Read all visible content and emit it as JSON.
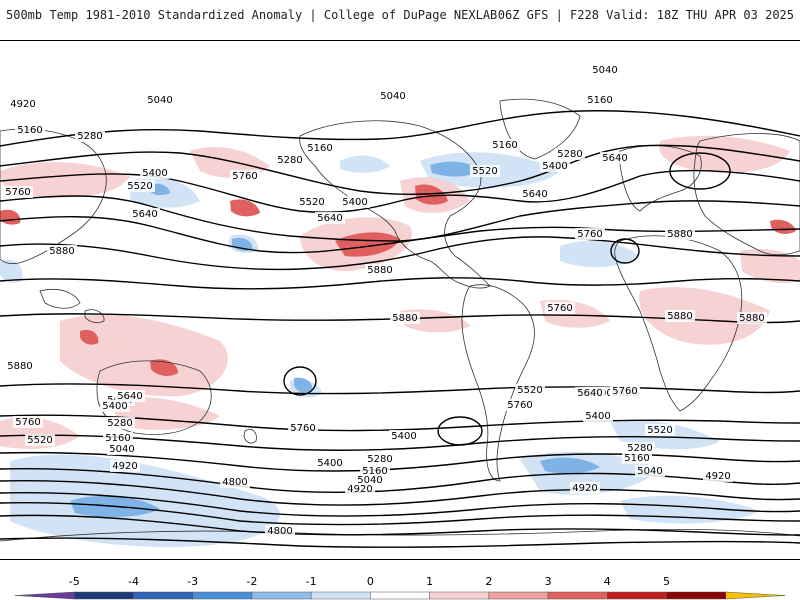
{
  "header": {
    "title": "500mb Temp 1981-2010 Standardized Anomaly | College of DuPage NEXLAB",
    "run_info": "06Z GFS | F228 Valid: 18Z THU APR 03 2025"
  },
  "colorbar": {
    "ticks": [
      "-5",
      "-4",
      "-3",
      "-2",
      "-1",
      "0",
      "1",
      "2",
      "3",
      "4",
      "5"
    ],
    "colors": [
      "#6a3d9a",
      "#1f3a7a",
      "#2f63b5",
      "#4a90d9",
      "#8fbde8",
      "#cfe2f5",
      "#ffffff",
      "#f7d0d0",
      "#f0a0a0",
      "#e06060",
      "#c02020",
      "#8b0000",
      "#f5c000"
    ]
  },
  "contours": [
    {
      "label": "5040",
      "text": "5040"
    },
    {
      "label": "4920",
      "text": "4920"
    },
    {
      "label": "5160",
      "text": "5160"
    },
    {
      "label": "5280",
      "text": "5280"
    },
    {
      "label": "5400",
      "text": "5400"
    },
    {
      "label": "5520",
      "text": "5520"
    },
    {
      "label": "5640",
      "text": "5640"
    },
    {
      "label": "5760",
      "text": "5760"
    },
    {
      "label": "5880",
      "text": "5880"
    },
    {
      "label": "4800",
      "text": "4800"
    }
  ],
  "map_labels": [
    {
      "text": "5040"
    },
    {
      "text": "4920"
    },
    {
      "text": "5040"
    },
    {
      "text": "5040"
    },
    {
      "text": "5160"
    },
    {
      "text": "5160"
    },
    {
      "text": "5280"
    },
    {
      "text": "5160"
    },
    {
      "text": "5280"
    },
    {
      "text": "5160"
    },
    {
      "text": "5280"
    },
    {
      "text": "5400"
    },
    {
      "text": "5640"
    },
    {
      "text": "5400"
    },
    {
      "text": "5520"
    },
    {
      "text": "5760"
    },
    {
      "text": "5520"
    },
    {
      "text": "5400"
    },
    {
      "text": "5640"
    },
    {
      "text": "5520"
    },
    {
      "text": "5640"
    },
    {
      "text": "5760"
    },
    {
      "text": "5760"
    },
    {
      "text": "5640"
    },
    {
      "text": "5880"
    },
    {
      "text": "5880"
    },
    {
      "text": "5760"
    },
    {
      "text": "5880"
    },
    {
      "text": "5880"
    },
    {
      "text": "5880"
    },
    {
      "text": "5880"
    },
    {
      "text": "5880"
    },
    {
      "text": "5640"
    },
    {
      "text": "5400"
    },
    {
      "text": "5280"
    },
    {
      "text": "5760"
    },
    {
      "text": "5400"
    },
    {
      "text": "5520"
    },
    {
      "text": "5160"
    },
    {
      "text": "5040"
    },
    {
      "text": "5520"
    },
    {
      "text": "5760"
    },
    {
      "text": "4920"
    },
    {
      "text": "5640"
    },
    {
      "text": "5760"
    },
    {
      "text": "5520"
    },
    {
      "text": "5400"
    },
    {
      "text": "5400"
    },
    {
      "text": "5280"
    },
    {
      "text": "5160"
    },
    {
      "text": "5040"
    },
    {
      "text": "4920"
    },
    {
      "text": "4800"
    },
    {
      "text": "5640"
    },
    {
      "text": "5760"
    },
    {
      "text": "5400"
    },
    {
      "text": "5520"
    },
    {
      "text": "5280"
    },
    {
      "text": "5160"
    },
    {
      "text": "5040"
    },
    {
      "text": "4920"
    },
    {
      "text": "4920"
    },
    {
      "text": "4800"
    }
  ]
}
